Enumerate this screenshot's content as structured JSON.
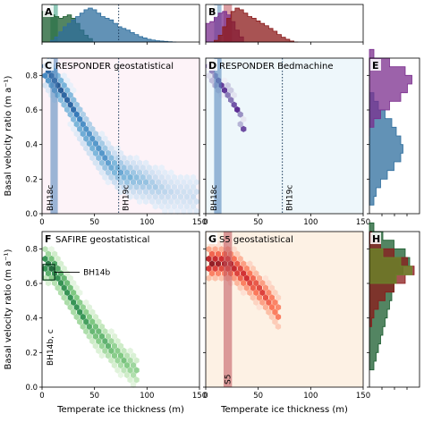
{
  "chart_data": [
    {
      "id": "A",
      "type": "area",
      "panel_label": "A",
      "x_range": [
        0,
        150
      ],
      "series": [
        {
          "name": "",
          "color": "#1a5c2e",
          "x": [
            0,
            4,
            8,
            12,
            16,
            20,
            24,
            28,
            32,
            36,
            40,
            44,
            48
          ],
          "values": [
            0.9,
            0.85,
            0.8,
            0.75,
            0.7,
            0.75,
            0.8,
            0.7,
            0.55,
            0.35,
            0.2,
            0.1,
            0.0
          ]
        },
        {
          "name": "",
          "color": "#2e6e9e",
          "x": [
            8,
            12,
            16,
            20,
            24,
            28,
            32,
            36,
            40,
            44,
            48,
            52,
            56,
            60,
            64,
            68,
            72,
            76,
            80,
            84,
            88,
            92,
            96,
            100,
            104,
            108,
            112,
            116,
            120,
            124
          ],
          "values": [
            0.05,
            0.15,
            0.3,
            0.45,
            0.55,
            0.65,
            0.75,
            0.85,
            0.95,
            1.0,
            0.95,
            0.85,
            0.75,
            0.7,
            0.65,
            0.55,
            0.45,
            0.4,
            0.35,
            0.28,
            0.22,
            0.16,
            0.12,
            0.08,
            0.06,
            0.04,
            0.03,
            0.02,
            0.01,
            0.0
          ]
        }
      ],
      "reference_lines": [
        {
          "x": 73,
          "style": "dotted"
        }
      ],
      "bands": [
        {
          "x": [
            8,
            15
          ],
          "color": "#5a8fc0"
        },
        {
          "x": [
            8,
            15
          ],
          "color": "#7bcf9a"
        }
      ]
    },
    {
      "id": "B",
      "type": "area",
      "panel_label": "B",
      "x_range": [
        0,
        150
      ],
      "series": [
        {
          "name": "",
          "color": "#7b2d8e",
          "x": [
            0,
            4,
            8,
            12,
            16,
            20,
            24,
            28,
            32,
            36
          ],
          "values": [
            0.55,
            0.6,
            0.75,
            0.85,
            0.9,
            0.8,
            0.6,
            0.35,
            0.15,
            0.0
          ]
        },
        {
          "name": "",
          "color": "#8b1a1a",
          "x": [
            8,
            12,
            16,
            20,
            24,
            28,
            32,
            36,
            40,
            44,
            48,
            52,
            56,
            60,
            64,
            68,
            72,
            76,
            80,
            84
          ],
          "values": [
            0.05,
            0.2,
            0.45,
            0.7,
            0.9,
            1.0,
            0.95,
            0.85,
            0.75,
            0.7,
            0.62,
            0.55,
            0.48,
            0.4,
            0.32,
            0.22,
            0.14,
            0.08,
            0.03,
            0.0
          ]
        }
      ],
      "bands": [
        {
          "x": [
            8,
            15
          ],
          "color": "#5a8fc0"
        },
        {
          "x": [
            17,
            25
          ],
          "color": "#c0505a"
        }
      ]
    },
    {
      "id": "C",
      "type": "heatmap",
      "panel_label": "C",
      "title": "RESPONDER geostatistical",
      "x_range": [
        0,
        150
      ],
      "y_range": [
        0,
        0.9
      ],
      "ylabel": "Basal velocity ratio (m a⁻¹)",
      "x_ticks": [
        0,
        50,
        100,
        150
      ],
      "y_ticks": [
        0.0,
        0.2,
        0.4,
        0.6,
        0.8
      ],
      "colormap": "Blues",
      "background": "#fdf3f8",
      "ridge": [
        [
          2,
          0.84
        ],
        [
          10,
          0.78
        ],
        [
          20,
          0.7
        ],
        [
          30,
          0.6
        ],
        [
          40,
          0.49
        ],
        [
          50,
          0.4
        ],
        [
          60,
          0.32
        ],
        [
          70,
          0.26
        ],
        [
          80,
          0.22
        ],
        [
          90,
          0.2
        ],
        [
          100,
          0.18
        ],
        [
          110,
          0.15
        ],
        [
          120,
          0.13
        ],
        [
          135,
          0.11
        ],
        [
          148,
          0.1
        ]
      ],
      "vbands": [
        {
          "x": [
            8,
            15
          ],
          "color": "#4a80b8",
          "label": "BH18c"
        }
      ],
      "vlines": [
        {
          "x": 73,
          "label": "BH19c"
        }
      ]
    },
    {
      "id": "D",
      "type": "heatmap",
      "panel_label": "D",
      "title": "RESPONDER Bedmachine",
      "x_range": [
        0,
        150
      ],
      "y_range": [
        0,
        0.9
      ],
      "x_ticks": [
        0,
        50,
        100,
        150
      ],
      "y_ticks": [
        0.0,
        0.2,
        0.4,
        0.6,
        0.8
      ],
      "colormap": "Purples",
      "background": "#eef7fb",
      "ridge": [
        [
          3,
          0.84
        ],
        [
          8,
          0.78
        ],
        [
          14,
          0.74
        ],
        [
          22,
          0.7
        ],
        [
          28,
          0.63
        ],
        [
          33,
          0.55
        ],
        [
          36,
          0.5
        ]
      ],
      "vbands": [
        {
          "x": [
            8,
            15
          ],
          "color": "#4a80b8",
          "label": "BH18c"
        }
      ],
      "vlines": [
        {
          "x": 73,
          "label": "BH19c"
        }
      ]
    },
    {
      "id": "E",
      "type": "area",
      "panel_label": "E",
      "y_range": [
        0,
        0.9
      ],
      "orientation": "horizontal",
      "series": [
        {
          "name": "",
          "color": "#2e6e9e",
          "y": [
            0.05,
            0.1,
            0.15,
            0.2,
            0.25,
            0.3,
            0.35,
            0.4,
            0.45,
            0.5,
            0.55,
            0.6,
            0.65,
            0.7
          ],
          "values": [
            0.1,
            0.15,
            0.25,
            0.4,
            0.55,
            0.7,
            0.75,
            0.7,
            0.6,
            0.5,
            0.35,
            0.2,
            0.1,
            0.0
          ]
        },
        {
          "name": "",
          "color": "#7b2d8e",
          "y": [
            0.45,
            0.5,
            0.55,
            0.6,
            0.65,
            0.7,
            0.75,
            0.8,
            0.85,
            0.9
          ],
          "values": [
            0.0,
            0.1,
            0.25,
            0.45,
            0.7,
            0.85,
            0.95,
            0.8,
            0.45,
            0.1
          ]
        }
      ]
    },
    {
      "id": "F",
      "type": "heatmap",
      "panel_label": "F",
      "title": "SAFIRE geostatistical",
      "x_range": [
        0,
        150
      ],
      "y_range": [
        0,
        0.9
      ],
      "xlabel": "Temperate ice thickness (m)",
      "ylabel": "Basal velocity ratio (m a⁻¹)",
      "x_ticks": [
        0,
        50,
        100,
        150
      ],
      "y_ticks": [
        0.0,
        0.2,
        0.4,
        0.6,
        0.8
      ],
      "colormap": "Greens",
      "background": "#ffffff",
      "ridge": [
        [
          2,
          0.72
        ],
        [
          6,
          0.7
        ],
        [
          12,
          0.68
        ],
        [
          18,
          0.62
        ],
        [
          25,
          0.55
        ],
        [
          32,
          0.48
        ],
        [
          40,
          0.4
        ],
        [
          50,
          0.33
        ],
        [
          60,
          0.26
        ],
        [
          70,
          0.2
        ],
        [
          80,
          0.14
        ],
        [
          90,
          0.09
        ]
      ],
      "vbands": [],
      "vlines": [],
      "annotation": {
        "label": "BH14b",
        "box": {
          "x": [
            1,
            12
          ],
          "y": [
            0.62,
            0.71
          ]
        }
      },
      "side_label": "BH14b, c"
    },
    {
      "id": "G",
      "type": "heatmap",
      "panel_label": "G",
      "title": "S5 geostatistical",
      "x_range": [
        0,
        150
      ],
      "y_range": [
        0,
        0.9
      ],
      "xlabel": "Temperate ice thickness (m)",
      "x_ticks": [
        0,
        50,
        100,
        150
      ],
      "y_ticks": [
        0.0,
        0.2,
        0.4,
        0.6,
        0.8
      ],
      "colormap": "Reds",
      "background": "#fdf1e4",
      "ridge": [
        [
          20,
          0.72
        ],
        [
          26,
          0.7
        ],
        [
          32,
          0.67
        ],
        [
          38,
          0.64
        ],
        [
          45,
          0.6
        ],
        [
          52,
          0.56
        ],
        [
          58,
          0.52
        ],
        [
          64,
          0.48
        ],
        [
          70,
          0.42
        ]
      ],
      "vbands": [
        {
          "x": [
            17,
            25
          ],
          "color": "#c0505a",
          "label": "S5"
        }
      ],
      "vlines": []
    },
    {
      "id": "H",
      "type": "area",
      "panel_label": "H",
      "y_range": [
        0,
        0.9
      ],
      "orientation": "horizontal",
      "series": [
        {
          "name": "",
          "color": "#1a5c2e",
          "y": [
            0.1,
            0.15,
            0.2,
            0.25,
            0.3,
            0.35,
            0.4,
            0.45,
            0.5,
            0.55,
            0.6,
            0.65,
            0.7,
            0.75,
            0.8,
            0.85,
            0.9
          ],
          "values": [
            0.1,
            0.15,
            0.2,
            0.25,
            0.3,
            0.35,
            0.4,
            0.45,
            0.5,
            0.55,
            0.6,
            0.75,
            0.9,
            0.8,
            0.55,
            0.3,
            0.1
          ]
        },
        {
          "name": "",
          "color": "#8b1a1a",
          "y": [
            0.35,
            0.4,
            0.45,
            0.5,
            0.55,
            0.6,
            0.65,
            0.7,
            0.75,
            0.8,
            0.85
          ],
          "values": [
            0.05,
            0.1,
            0.2,
            0.35,
            0.55,
            0.8,
            1.0,
            0.85,
            0.55,
            0.25,
            0.05
          ]
        },
        {
          "name": "",
          "color": "#6a8a2a",
          "y": [
            0.6,
            0.65,
            0.7,
            0.75
          ],
          "values": [
            0.6,
            0.95,
            0.7,
            0.3
          ]
        }
      ]
    }
  ],
  "bh_labels": {
    "C_band": "BH18c",
    "C_line": "BH19c",
    "D_band": "BH18c",
    "D_line": "BH19c",
    "G_band": "S5"
  }
}
